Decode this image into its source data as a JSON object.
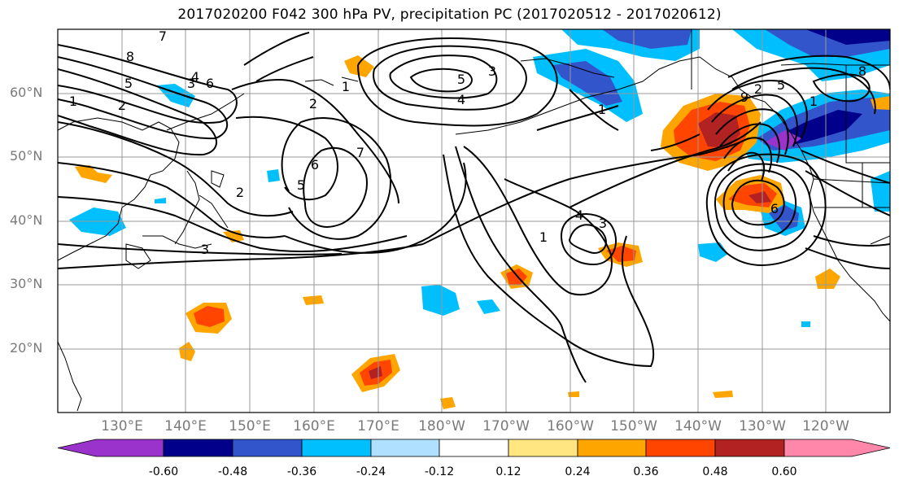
{
  "title": "2017020200 F042 300 hPa PV, precipitation PC (2017020512 - 2017020612)",
  "lat_labels": [
    "60°N",
    "50°N",
    "40°N",
    "30°N",
    "20°N"
  ],
  "lon_labels": [
    "130°E",
    "140°E",
    "150°E",
    "160°E",
    "170°E",
    "180°W",
    "170°W",
    "160°W",
    "150°W",
    "140°W",
    "130°W",
    "120°W"
  ],
  "contour_labels": [
    "8",
    "7",
    "6",
    "5",
    "4",
    "3",
    "2",
    "1",
    "5",
    "4",
    "3",
    "2",
    "1",
    "7",
    "6",
    "5",
    "3",
    "2",
    "1",
    "4",
    "3",
    "1",
    "8",
    "9",
    "6",
    "5",
    "2",
    "1"
  ],
  "colorbar": {
    "colors": [
      "#9933cc",
      "#00008b",
      "#3355cc",
      "#00bfff",
      "#b0e0ff",
      "#ffffff",
      "#ffe680",
      "#ffa500",
      "#ff4500",
      "#b22222",
      "#ff88aa"
    ],
    "tick_labels": [
      "-0.60",
      "-0.48",
      "-0.36",
      "-0.24",
      "-0.12",
      "0.12",
      "0.24",
      "0.36",
      "0.48",
      "0.60"
    ]
  }
}
